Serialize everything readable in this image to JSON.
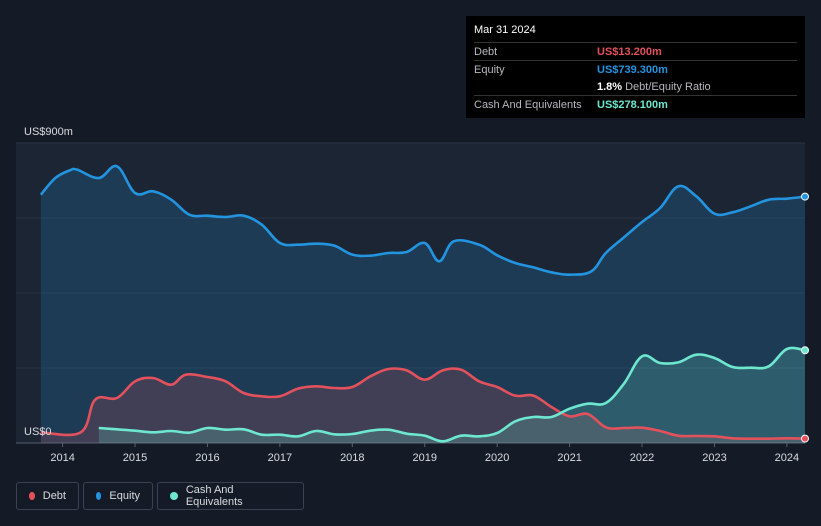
{
  "tooltip": {
    "date": "Mar 31 2024",
    "debt_label": "Debt",
    "debt_value": "US$13.200m",
    "equity_label": "Equity",
    "equity_value": "US$739.300m",
    "ratio_value": "1.8%",
    "ratio_label": "Debt/Equity Ratio",
    "cash_label": "Cash And Equivalents",
    "cash_value": "US$278.100m"
  },
  "legend": {
    "debt": "Debt",
    "equity": "Equity",
    "cash": "Cash And Equivalents"
  },
  "colors": {
    "debt": "#e2515c",
    "equity": "#2394df",
    "cash": "#6ee7cf",
    "background": "#151b26"
  },
  "chart_data": {
    "type": "area",
    "title": "",
    "y_unit_label_top": "US$900m",
    "y_unit_label_bottom": "US$0",
    "ylim": [
      0,
      900
    ],
    "xlim": [
      2013.55,
      2024.25
    ],
    "x_tick_labels": [
      "2014",
      "2015",
      "2016",
      "2017",
      "2018",
      "2019",
      "2020",
      "2021",
      "2022",
      "2023",
      "2024"
    ],
    "series": [
      {
        "name": "Debt",
        "points": [
          [
            2013.7,
            32
          ],
          [
            2014.25,
            32
          ],
          [
            2014.45,
            130
          ],
          [
            2014.75,
            135
          ],
          [
            2015.0,
            185
          ],
          [
            2015.25,
            195
          ],
          [
            2015.5,
            175
          ],
          [
            2015.7,
            205
          ],
          [
            2016.0,
            198
          ],
          [
            2016.25,
            185
          ],
          [
            2016.5,
            150
          ],
          [
            2016.75,
            140
          ],
          [
            2017.0,
            140
          ],
          [
            2017.25,
            163
          ],
          [
            2017.5,
            170
          ],
          [
            2017.75,
            165
          ],
          [
            2018.0,
            168
          ],
          [
            2018.25,
            200
          ],
          [
            2018.5,
            222
          ],
          [
            2018.75,
            218
          ],
          [
            2019.0,
            190
          ],
          [
            2019.25,
            218
          ],
          [
            2019.5,
            220
          ],
          [
            2019.75,
            185
          ],
          [
            2020.0,
            168
          ],
          [
            2020.25,
            142
          ],
          [
            2020.5,
            142
          ],
          [
            2020.75,
            108
          ],
          [
            2021.0,
            80
          ],
          [
            2021.25,
            87
          ],
          [
            2021.5,
            47
          ],
          [
            2021.75,
            45
          ],
          [
            2022.0,
            46
          ],
          [
            2022.25,
            36
          ],
          [
            2022.5,
            22
          ],
          [
            2022.75,
            21
          ],
          [
            2023.0,
            20
          ],
          [
            2023.25,
            14
          ],
          [
            2023.5,
            13
          ],
          [
            2023.75,
            13
          ],
          [
            2024.0,
            14
          ],
          [
            2024.25,
            13.2
          ]
        ]
      },
      {
        "name": "Equity",
        "points": [
          [
            2013.7,
            745
          ],
          [
            2013.9,
            795
          ],
          [
            2014.1,
            818
          ],
          [
            2014.2,
            820
          ],
          [
            2014.5,
            795
          ],
          [
            2014.75,
            830
          ],
          [
            2015.0,
            750
          ],
          [
            2015.25,
            755
          ],
          [
            2015.5,
            730
          ],
          [
            2015.75,
            685
          ],
          [
            2016.0,
            682
          ],
          [
            2016.25,
            678
          ],
          [
            2016.5,
            682
          ],
          [
            2016.75,
            655
          ],
          [
            2017.0,
            600
          ],
          [
            2017.25,
            595
          ],
          [
            2017.5,
            598
          ],
          [
            2017.75,
            592
          ],
          [
            2018.0,
            565
          ],
          [
            2018.25,
            562
          ],
          [
            2018.5,
            570
          ],
          [
            2018.75,
            573
          ],
          [
            2019.0,
            600
          ],
          [
            2019.2,
            545
          ],
          [
            2019.4,
            605
          ],
          [
            2019.75,
            595
          ],
          [
            2020.0,
            563
          ],
          [
            2020.25,
            540
          ],
          [
            2020.5,
            527
          ],
          [
            2020.75,
            512
          ],
          [
            2021.0,
            505
          ],
          [
            2021.3,
            515
          ],
          [
            2021.5,
            570
          ],
          [
            2021.75,
            617
          ],
          [
            2022.0,
            663
          ],
          [
            2022.25,
            705
          ],
          [
            2022.5,
            770
          ],
          [
            2022.75,
            740
          ],
          [
            2023.0,
            688
          ],
          [
            2023.25,
            692
          ],
          [
            2023.5,
            710
          ],
          [
            2023.75,
            730
          ],
          [
            2024.0,
            733
          ],
          [
            2024.25,
            739.3
          ]
        ]
      },
      {
        "name": "Cash And Equivalents",
        "points": [
          [
            2014.5,
            45
          ],
          [
            2014.75,
            41
          ],
          [
            2015.0,
            37
          ],
          [
            2015.25,
            32
          ],
          [
            2015.5,
            36
          ],
          [
            2015.75,
            31
          ],
          [
            2016.0,
            45
          ],
          [
            2016.25,
            40
          ],
          [
            2016.5,
            41
          ],
          [
            2016.75,
            25
          ],
          [
            2017.0,
            25
          ],
          [
            2017.25,
            20
          ],
          [
            2017.5,
            36
          ],
          [
            2017.75,
            26
          ],
          [
            2018.0,
            27
          ],
          [
            2018.25,
            37
          ],
          [
            2018.5,
            40
          ],
          [
            2018.75,
            28
          ],
          [
            2019.0,
            22
          ],
          [
            2019.25,
            5
          ],
          [
            2019.5,
            22
          ],
          [
            2019.75,
            20
          ],
          [
            2020.0,
            30
          ],
          [
            2020.25,
            65
          ],
          [
            2020.5,
            78
          ],
          [
            2020.75,
            78
          ],
          [
            2021.0,
            103
          ],
          [
            2021.25,
            118
          ],
          [
            2021.5,
            120
          ],
          [
            2021.75,
            178
          ],
          [
            2022.0,
            260
          ],
          [
            2022.25,
            240
          ],
          [
            2022.5,
            242
          ],
          [
            2022.75,
            265
          ],
          [
            2023.0,
            255
          ],
          [
            2023.25,
            228
          ],
          [
            2023.5,
            226
          ],
          [
            2023.75,
            230
          ],
          [
            2024.0,
            282
          ],
          [
            2024.25,
            278.1
          ]
        ]
      }
    ]
  }
}
